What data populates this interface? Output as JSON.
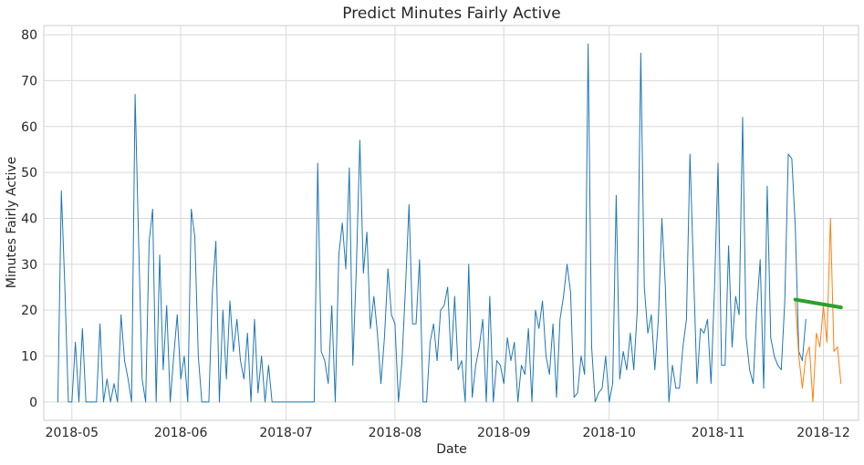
{
  "chart_data": {
    "type": "line",
    "title": "Predict Minutes Fairly Active",
    "xlabel": "Date",
    "ylabel": "Minutes Fairly Active",
    "grid": true,
    "xlim": [
      "2018-04-23",
      "2018-12-11"
    ],
    "ylim": [
      -4,
      82
    ],
    "yticks": [
      0,
      10,
      20,
      30,
      40,
      50,
      60,
      70,
      80
    ],
    "xticks": [
      {
        "date": "2018-05-01",
        "label": "2018-05"
      },
      {
        "date": "2018-06-01",
        "label": "2018-06"
      },
      {
        "date": "2018-07-01",
        "label": "2018-07"
      },
      {
        "date": "2018-08-01",
        "label": "2018-08"
      },
      {
        "date": "2018-09-01",
        "label": "2018-09"
      },
      {
        "date": "2018-10-01",
        "label": "2018-10"
      },
      {
        "date": "2018-11-01",
        "label": "2018-11"
      },
      {
        "date": "2018-12-01",
        "label": "2018-12"
      }
    ],
    "series": [
      {
        "color": "#1f77b4",
        "line_width": 1,
        "start_date": "2018-04-27",
        "values": [
          0,
          46,
          25,
          0,
          0,
          13,
          0,
          16,
          0,
          0,
          0,
          0,
          17,
          0,
          5,
          0,
          4,
          0,
          19,
          9,
          5,
          0,
          67,
          35,
          5,
          0,
          35,
          42,
          0,
          32,
          7,
          21,
          0,
          10,
          19,
          5,
          10,
          0,
          42,
          36,
          10,
          0,
          0,
          0,
          24,
          35,
          0,
          20,
          5,
          22,
          11,
          18,
          9,
          5,
          15,
          0,
          18,
          2,
          10,
          0,
          8,
          0,
          0,
          0,
          0,
          0,
          0,
          0,
          0,
          0,
          0,
          0,
          0,
          0,
          52,
          11,
          9,
          4,
          21,
          0,
          32,
          39,
          29,
          51,
          8,
          29,
          57,
          28,
          37,
          16,
          23,
          15,
          4,
          14,
          29,
          19,
          17,
          0,
          9,
          25,
          43,
          17,
          17,
          31,
          0,
          0,
          13,
          17,
          9,
          20,
          21,
          25,
          9,
          23,
          7,
          9,
          0,
          30,
          1,
          8,
          12,
          18,
          0,
          23,
          0,
          9,
          8,
          4,
          14,
          9,
          13,
          0,
          8,
          6,
          16,
          0,
          20,
          16,
          22,
          10,
          6,
          17,
          1,
          18,
          23,
          30,
          24,
          1,
          2,
          10,
          6,
          78,
          12,
          0,
          2,
          3,
          10,
          0,
          4,
          45,
          5,
          11,
          7,
          15,
          7,
          20,
          76,
          25,
          15,
          19,
          7,
          18,
          40,
          25,
          0,
          8,
          3,
          3,
          12,
          18,
          54,
          29,
          4,
          16,
          15,
          18,
          4,
          25,
          52,
          8,
          8,
          34,
          12,
          23,
          19,
          62,
          14,
          7,
          4,
          20,
          31,
          3,
          47,
          14,
          10,
          8,
          7,
          22,
          54,
          53,
          38,
          11,
          9,
          18
        ]
      },
      {
        "color": "#ff7f0e",
        "line_width": 1,
        "start_date": "2018-11-23",
        "values": [
          22,
          10,
          3,
          10,
          12,
          0,
          15,
          12,
          21,
          13,
          40,
          11,
          12,
          4
        ]
      },
      {
        "color": "#2ca02c",
        "line_width": 4,
        "x": [
          "2018-11-23",
          "2018-12-06"
        ],
        "values": [
          22.3,
          20.6
        ]
      }
    ]
  }
}
